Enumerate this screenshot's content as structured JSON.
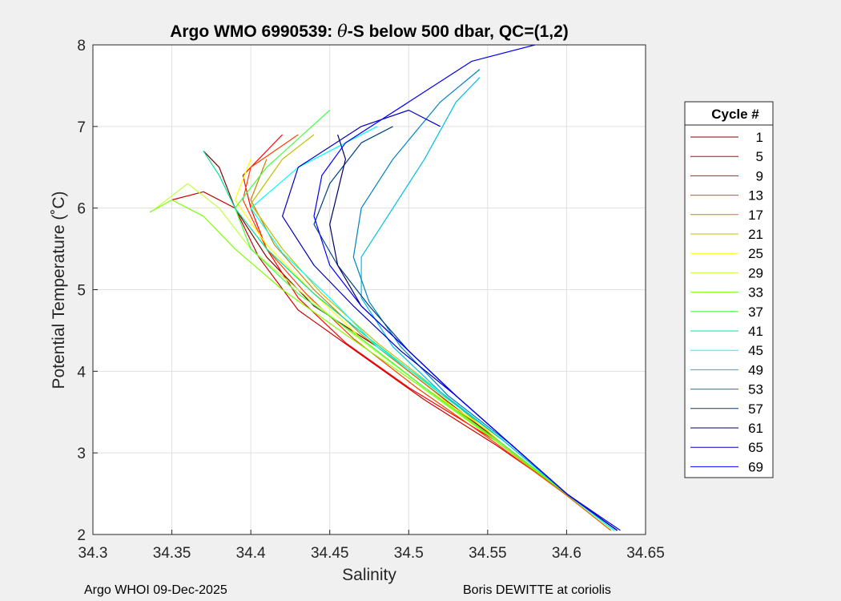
{
  "chart_data": {
    "type": "line",
    "title_prefix": "Argo WMO 6990539: ",
    "title_theta": "θ",
    "title_suffix": "-S below 500 dbar,  QC=(1,2)",
    "xlabel": "Salinity",
    "ylabel": "Potential Temperature (˚C)",
    "xlim": [
      34.3,
      34.65
    ],
    "ylim": [
      2,
      8
    ],
    "xticks": [
      "34.3",
      "34.35",
      "34.4",
      "34.45",
      "34.5",
      "34.55",
      "34.6",
      "34.65"
    ],
    "xtick_values": [
      34.3,
      34.35,
      34.4,
      34.45,
      34.5,
      34.55,
      34.6,
      34.65
    ],
    "yticks": [
      "2",
      "3",
      "4",
      "5",
      "6",
      "7",
      "8"
    ],
    "ytick_values": [
      2,
      3,
      4,
      5,
      6,
      7,
      8
    ],
    "grid": true,
    "legend_position": "outside-right",
    "legend_title": "Cycle #",
    "series": [
      {
        "name": "1",
        "color": "#800000",
        "points": [
          [
            34.632,
            2.05
          ],
          [
            34.6,
            2.5
          ],
          [
            34.56,
            3.1
          ],
          [
            34.52,
            3.7
          ],
          [
            34.48,
            4.3
          ],
          [
            34.44,
            4.8
          ],
          [
            34.41,
            5.4
          ],
          [
            34.39,
            6.0
          ],
          [
            34.38,
            6.5
          ],
          [
            34.37,
            6.7
          ]
        ]
      },
      {
        "name": "5",
        "color": "#cc0000",
        "points": [
          [
            34.63,
            2.05
          ],
          [
            34.6,
            2.5
          ],
          [
            34.555,
            3.1
          ],
          [
            34.51,
            3.65
          ],
          [
            34.47,
            4.2
          ],
          [
            34.43,
            4.75
          ],
          [
            34.405,
            5.4
          ],
          [
            34.39,
            6.0
          ],
          [
            34.37,
            6.2
          ],
          [
            34.35,
            6.1
          ]
        ]
      },
      {
        "name": "9",
        "color": "#ff0000",
        "points": [
          [
            34.63,
            2.05
          ],
          [
            34.6,
            2.5
          ],
          [
            34.555,
            3.15
          ],
          [
            34.5,
            3.8
          ],
          [
            34.46,
            4.35
          ],
          [
            34.43,
            4.9
          ],
          [
            34.41,
            5.5
          ],
          [
            34.4,
            6.0
          ],
          [
            34.395,
            6.4
          ],
          [
            34.42,
            6.9
          ]
        ]
      },
      {
        "name": "13",
        "color": "#ff4000",
        "points": [
          [
            34.628,
            2.05
          ],
          [
            34.6,
            2.48
          ],
          [
            34.555,
            3.12
          ],
          [
            34.505,
            3.8
          ],
          [
            34.465,
            4.4
          ],
          [
            34.435,
            4.95
          ],
          [
            34.41,
            5.5
          ],
          [
            34.395,
            6.1
          ],
          [
            34.4,
            6.5
          ],
          [
            34.43,
            6.9
          ]
        ]
      },
      {
        "name": "17",
        "color": "#cc8000",
        "points": [
          [
            34.628,
            2.05
          ],
          [
            34.6,
            2.48
          ],
          [
            34.555,
            3.15
          ],
          [
            34.51,
            3.85
          ],
          [
            34.47,
            4.45
          ],
          [
            34.44,
            5.0
          ],
          [
            34.415,
            5.55
          ],
          [
            34.4,
            6.1
          ],
          [
            34.41,
            6.6
          ]
        ]
      },
      {
        "name": "21",
        "color": "#c0c000",
        "points": [
          [
            34.63,
            2.05
          ],
          [
            34.6,
            2.5
          ],
          [
            34.56,
            3.1
          ],
          [
            34.52,
            3.75
          ],
          [
            34.48,
            4.35
          ],
          [
            34.445,
            4.95
          ],
          [
            34.42,
            5.5
          ],
          [
            34.4,
            6.05
          ],
          [
            34.42,
            6.6
          ],
          [
            34.44,
            6.9
          ]
        ]
      },
      {
        "name": "25",
        "color": "#ffff00",
        "points": [
          [
            34.63,
            2.05
          ],
          [
            34.6,
            2.5
          ],
          [
            34.56,
            3.15
          ],
          [
            34.51,
            3.8
          ],
          [
            34.47,
            4.4
          ],
          [
            34.44,
            4.95
          ],
          [
            34.41,
            5.55
          ],
          [
            34.39,
            6.1
          ],
          [
            34.4,
            6.6
          ]
        ]
      },
      {
        "name": "29",
        "color": "#c0ff40",
        "points": [
          [
            34.63,
            2.05
          ],
          [
            34.6,
            2.5
          ],
          [
            34.555,
            3.15
          ],
          [
            34.51,
            3.8
          ],
          [
            34.465,
            4.45
          ],
          [
            34.43,
            5.0
          ],
          [
            34.4,
            5.5
          ],
          [
            34.38,
            6.0
          ],
          [
            34.36,
            6.3
          ],
          [
            34.34,
            6.0
          ]
        ]
      },
      {
        "name": "33",
        "color": "#80ff00",
        "points": [
          [
            34.63,
            2.05
          ],
          [
            34.6,
            2.5
          ],
          [
            34.555,
            3.15
          ],
          [
            34.505,
            3.85
          ],
          [
            34.46,
            4.45
          ],
          [
            34.42,
            5.0
          ],
          [
            34.39,
            5.5
          ],
          [
            34.37,
            5.9
          ],
          [
            34.35,
            6.1
          ],
          [
            34.336,
            5.95
          ]
        ]
      },
      {
        "name": "37",
        "color": "#40ff40",
        "points": [
          [
            34.63,
            2.05
          ],
          [
            34.6,
            2.5
          ],
          [
            34.56,
            3.1
          ],
          [
            34.51,
            3.8
          ],
          [
            34.47,
            4.4
          ],
          [
            34.43,
            4.95
          ],
          [
            34.4,
            5.5
          ],
          [
            34.39,
            6.0
          ],
          [
            34.41,
            6.5
          ],
          [
            34.45,
            7.2
          ]
        ]
      },
      {
        "name": "41",
        "color": "#00e0a0",
        "points": [
          [
            34.63,
            2.05
          ],
          [
            34.6,
            2.5
          ],
          [
            34.56,
            3.15
          ],
          [
            34.515,
            3.8
          ],
          [
            34.475,
            4.4
          ],
          [
            34.44,
            4.95
          ],
          [
            34.41,
            5.5
          ],
          [
            34.39,
            6.0
          ],
          [
            34.38,
            6.4
          ],
          [
            34.37,
            6.7
          ]
        ]
      },
      {
        "name": "45",
        "color": "#00ffff",
        "points": [
          [
            34.63,
            2.05
          ],
          [
            34.6,
            2.5
          ],
          [
            34.56,
            3.15
          ],
          [
            34.52,
            3.75
          ],
          [
            34.48,
            4.3
          ],
          [
            34.45,
            4.9
          ],
          [
            34.42,
            5.45
          ],
          [
            34.4,
            6.0
          ],
          [
            34.43,
            6.5
          ],
          [
            34.48,
            7.0
          ]
        ]
      },
      {
        "name": "49",
        "color": "#00c0e0",
        "points": [
          [
            34.632,
            2.05
          ],
          [
            34.6,
            2.5
          ],
          [
            34.56,
            3.15
          ],
          [
            34.52,
            3.75
          ],
          [
            34.49,
            4.3
          ],
          [
            34.47,
            4.9
          ],
          [
            34.47,
            5.4
          ],
          [
            34.49,
            6.0
          ],
          [
            34.51,
            6.6
          ],
          [
            34.53,
            7.3
          ],
          [
            34.545,
            7.6
          ]
        ]
      },
      {
        "name": "53",
        "color": "#0080c0",
        "points": [
          [
            34.632,
            2.05
          ],
          [
            34.6,
            2.5
          ],
          [
            34.565,
            3.1
          ],
          [
            34.525,
            3.7
          ],
          [
            34.495,
            4.3
          ],
          [
            34.475,
            4.85
          ],
          [
            34.465,
            5.4
          ],
          [
            34.47,
            6.0
          ],
          [
            34.49,
            6.6
          ],
          [
            34.52,
            7.3
          ],
          [
            34.545,
            7.7
          ]
        ]
      },
      {
        "name": "57",
        "color": "#004080",
        "points": [
          [
            34.632,
            2.05
          ],
          [
            34.6,
            2.5
          ],
          [
            34.565,
            3.1
          ],
          [
            34.53,
            3.7
          ],
          [
            34.5,
            4.25
          ],
          [
            34.475,
            4.8
          ],
          [
            34.455,
            5.3
          ],
          [
            34.44,
            5.8
          ],
          [
            34.45,
            6.3
          ],
          [
            34.47,
            6.8
          ],
          [
            34.49,
            7.0
          ]
        ]
      },
      {
        "name": "61",
        "color": "#000060",
        "points": [
          [
            34.632,
            2.05
          ],
          [
            34.6,
            2.5
          ],
          [
            34.565,
            3.1
          ],
          [
            34.53,
            3.7
          ],
          [
            34.5,
            4.25
          ],
          [
            34.47,
            4.8
          ],
          [
            34.455,
            5.3
          ],
          [
            34.45,
            5.8
          ],
          [
            34.455,
            6.2
          ],
          [
            34.46,
            6.6
          ],
          [
            34.455,
            6.9
          ]
        ]
      },
      {
        "name": "65",
        "color": "#0000c0",
        "points": [
          [
            34.632,
            2.05
          ],
          [
            34.6,
            2.5
          ],
          [
            34.565,
            3.1
          ],
          [
            34.53,
            3.7
          ],
          [
            34.495,
            4.25
          ],
          [
            34.465,
            4.8
          ],
          [
            34.44,
            5.3
          ],
          [
            34.42,
            5.9
          ],
          [
            34.43,
            6.5
          ],
          [
            34.47,
            7.0
          ],
          [
            34.5,
            7.2
          ],
          [
            34.52,
            7.0
          ]
        ]
      },
      {
        "name": "69",
        "color": "#0000ff",
        "points": [
          [
            34.634,
            2.05
          ],
          [
            34.6,
            2.5
          ],
          [
            34.565,
            3.1
          ],
          [
            34.53,
            3.7
          ],
          [
            34.5,
            4.25
          ],
          [
            34.47,
            4.8
          ],
          [
            34.45,
            5.3
          ],
          [
            34.44,
            5.9
          ],
          [
            34.445,
            6.4
          ],
          [
            34.46,
            6.8
          ],
          [
            34.5,
            7.3
          ],
          [
            34.54,
            7.8
          ],
          [
            34.58,
            8.0
          ]
        ]
      }
    ]
  },
  "footer": {
    "left": "Argo WHOI 09-Dec-2025",
    "right": "Boris DEWITTE at coriolis"
  }
}
